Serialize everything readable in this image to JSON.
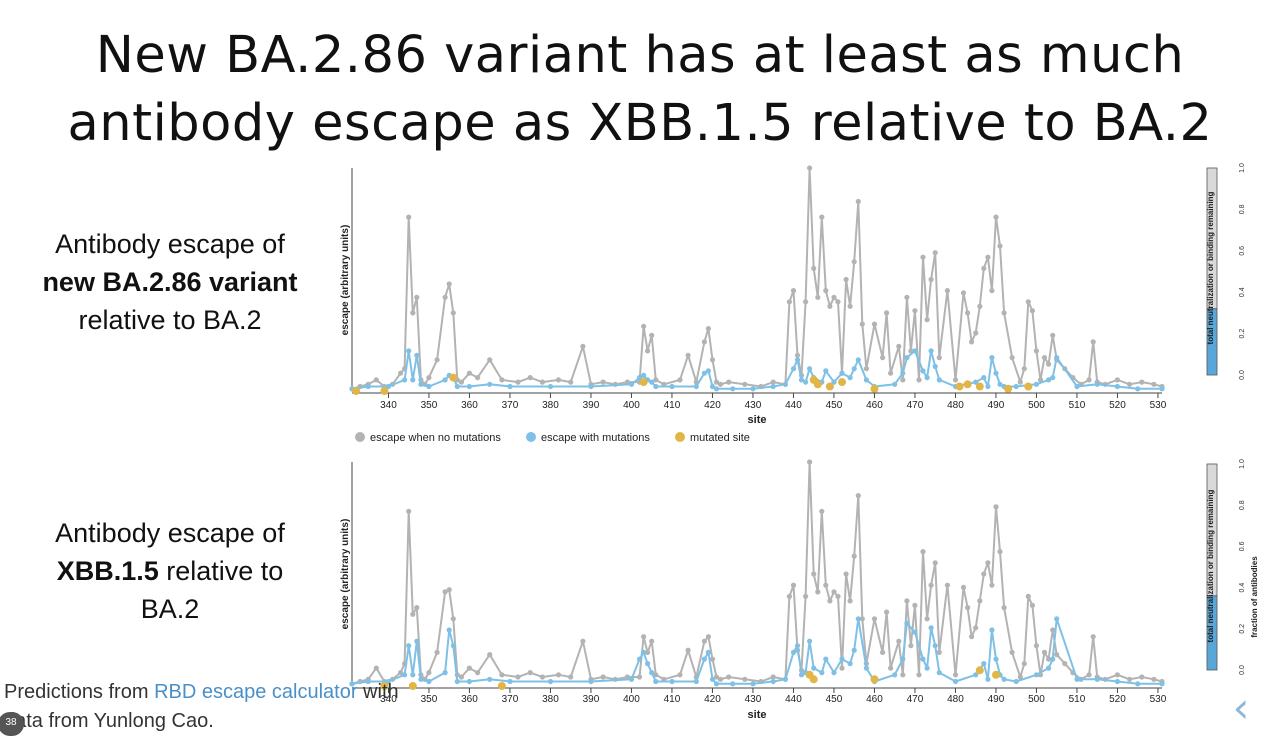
{
  "slide": {
    "title_line1": "New BA.2.86 variant has at least as much",
    "title_line2": "antibody escape as XBB.1.5 relative to BA.2",
    "panels": [
      {
        "line1": "Antibody escape of",
        "bold": "new BA.2.86 variant",
        "line3": "relative to BA.2"
      },
      {
        "line1": "Antibody escape of",
        "bold": "XBB.1.5",
        "line2_rest": " relative to",
        "line3": "BA.2"
      }
    ],
    "footer": {
      "prefix": "Predictions from ",
      "link": "RBD escape calculator",
      "suffix": " with data from Yunlong Cao."
    },
    "page_badge": "38",
    "nav_prev_glyph": "‹"
  },
  "chart_data": [
    {
      "type": "line",
      "xlabel": "site",
      "ylabel": "escape (arbitrary units)",
      "xlim": [
        331,
        531
      ],
      "ylim": [
        0,
        1.0
      ],
      "x_ticks": [
        340,
        350,
        360,
        370,
        380,
        390,
        400,
        410,
        420,
        430,
        440,
        450,
        460,
        470,
        480,
        490,
        500,
        510,
        520,
        530
      ],
      "legend": [
        "escape when no mutations",
        "escape with mutations",
        "mutated site"
      ],
      "colors": {
        "no_mut": "#b3b3b3",
        "with_mut": "#7ec0e6",
        "mutated": "#e2b547"
      },
      "series": [
        {
          "name": "escape when no mutations",
          "x": [
            331,
            333,
            335,
            337,
            339,
            341,
            343,
            344,
            345,
            346,
            347,
            348,
            349,
            350,
            352,
            354,
            355,
            356,
            357,
            358,
            360,
            362,
            365,
            368,
            372,
            375,
            378,
            382,
            385,
            388,
            390,
            393,
            396,
            399,
            402,
            403,
            404,
            405,
            406,
            408,
            412,
            414,
            416,
            418,
            419,
            420,
            421,
            422,
            424,
            428,
            432,
            435,
            438,
            439,
            440,
            441,
            442,
            443,
            444,
            445,
            446,
            447,
            448,
            449,
            450,
            451,
            452,
            453,
            454,
            455,
            456,
            457,
            458,
            460,
            462,
            463,
            464,
            466,
            467,
            468,
            469,
            470,
            471,
            472,
            473,
            474,
            475,
            476,
            478,
            480,
            482,
            483,
            484,
            485,
            486,
            487,
            488,
            489,
            490,
            491,
            492,
            494,
            496,
            497,
            498,
            499,
            500,
            501,
            502,
            503,
            504,
            505,
            507,
            509,
            511,
            513,
            514,
            515,
            517,
            520,
            523,
            526,
            529,
            531
          ],
          "y": [
            0.01,
            0.02,
            0.03,
            0.05,
            0.02,
            0.03,
            0.08,
            0.1,
            0.78,
            0.35,
            0.42,
            0.05,
            0.03,
            0.06,
            0.14,
            0.42,
            0.48,
            0.35,
            0.05,
            0.04,
            0.08,
            0.06,
            0.14,
            0.05,
            0.04,
            0.06,
            0.04,
            0.05,
            0.04,
            0.2,
            0.03,
            0.04,
            0.03,
            0.04,
            0.04,
            0.29,
            0.18,
            0.25,
            0.05,
            0.03,
            0.05,
            0.16,
            0.04,
            0.22,
            0.28,
            0.14,
            0.04,
            0.03,
            0.04,
            0.03,
            0.02,
            0.04,
            0.03,
            0.4,
            0.45,
            0.16,
            0.07,
            0.4,
            1.0,
            0.55,
            0.42,
            0.78,
            0.45,
            0.38,
            0.42,
            0.4,
            0.08,
            0.5,
            0.38,
            0.58,
            0.85,
            0.3,
            0.1,
            0.3,
            0.15,
            0.35,
            0.08,
            0.2,
            0.05,
            0.42,
            0.18,
            0.36,
            0.05,
            0.6,
            0.32,
            0.5,
            0.62,
            0.15,
            0.45,
            0.05,
            0.44,
            0.35,
            0.22,
            0.26,
            0.38,
            0.55,
            0.6,
            0.45,
            0.78,
            0.65,
            0.35,
            0.15,
            0.04,
            0.1,
            0.4,
            0.36,
            0.18,
            0.05,
            0.15,
            0.12,
            0.25,
            0.14,
            0.1,
            0.06,
            0.03,
            0.05,
            0.22,
            0.04,
            0.03,
            0.05,
            0.03,
            0.04,
            0.03,
            0.02
          ]
        },
        {
          "name": "escape with mutations",
          "x": [
            331,
            335,
            340,
            344,
            345,
            346,
            347,
            348,
            350,
            354,
            355,
            356,
            357,
            360,
            365,
            370,
            380,
            390,
            400,
            402,
            403,
            404,
            405,
            406,
            410,
            416,
            418,
            419,
            420,
            421,
            425,
            430,
            435,
            438,
            440,
            441,
            442,
            443,
            444,
            445,
            447,
            448,
            450,
            452,
            454,
            455,
            456,
            458,
            460,
            465,
            467,
            468,
            470,
            472,
            473,
            474,
            475,
            476,
            480,
            485,
            487,
            488,
            489,
            490,
            491,
            492,
            495,
            500,
            503,
            504,
            505,
            510,
            515,
            520,
            525,
            531
          ],
          "y": [
            0.01,
            0.02,
            0.02,
            0.05,
            0.18,
            0.05,
            0.16,
            0.03,
            0.02,
            0.05,
            0.07,
            0.06,
            0.02,
            0.02,
            0.03,
            0.02,
            0.02,
            0.02,
            0.03,
            0.06,
            0.07,
            0.05,
            0.04,
            0.02,
            0.02,
            0.02,
            0.08,
            0.09,
            0.02,
            0.01,
            0.01,
            0.01,
            0.02,
            0.03,
            0.1,
            0.14,
            0.05,
            0.04,
            0.1,
            0.06,
            0.04,
            0.09,
            0.04,
            0.08,
            0.06,
            0.1,
            0.14,
            0.05,
            0.02,
            0.03,
            0.08,
            0.15,
            0.18,
            0.09,
            0.06,
            0.18,
            0.11,
            0.05,
            0.02,
            0.04,
            0.06,
            0.02,
            0.15,
            0.08,
            0.03,
            0.02,
            0.02,
            0.03,
            0.05,
            0.06,
            0.15,
            0.02,
            0.03,
            0.02,
            0.01,
            0.01
          ]
        },
        {
          "name": "mutated site",
          "x": [
            332,
            339,
            356,
            403,
            445,
            446,
            449,
            452,
            460,
            481,
            483,
            486,
            493,
            498
          ],
          "y": [
            0.0,
            0.0,
            0.06,
            0.04,
            0.05,
            0.03,
            0.02,
            0.04,
            0.01,
            0.02,
            0.03,
            0.02,
            0.01,
            0.02
          ]
        }
      ],
      "colorbar": {
        "label": "total neutralization or binding remaining",
        "ticks": [
          0.0,
          0.2,
          0.4,
          0.6,
          0.8,
          1.0
        ],
        "value": 0.32,
        "fill": "#59a6d9",
        "remaining": "#d9d9d9"
      }
    },
    {
      "type": "line",
      "xlabel": "site",
      "ylabel": "escape (arbitrary units)",
      "xlim": [
        331,
        531
      ],
      "ylim": [
        0,
        1.0
      ],
      "x_ticks": [
        340,
        350,
        360,
        370,
        380,
        390,
        400,
        410,
        420,
        430,
        440,
        450,
        460,
        470,
        480,
        490,
        500,
        510,
        520,
        530
      ],
      "colors": {
        "no_mut": "#b3b3b3",
        "with_mut": "#7ec0e6",
        "mutated": "#e2b547"
      },
      "series": [
        {
          "name": "escape when no mutations",
          "x": [
            331,
            333,
            335,
            337,
            339,
            341,
            343,
            344,
            345,
            346,
            347,
            348,
            349,
            350,
            352,
            354,
            355,
            356,
            357,
            358,
            360,
            362,
            365,
            368,
            372,
            375,
            378,
            382,
            385,
            388,
            390,
            393,
            396,
            399,
            402,
            403,
            404,
            405,
            406,
            408,
            412,
            414,
            416,
            418,
            419,
            420,
            421,
            422,
            424,
            428,
            432,
            435,
            438,
            439,
            440,
            441,
            442,
            443,
            444,
            445,
            446,
            447,
            448,
            449,
            450,
            451,
            452,
            453,
            454,
            455,
            456,
            457,
            458,
            460,
            462,
            463,
            464,
            466,
            467,
            468,
            469,
            470,
            471,
            472,
            473,
            474,
            475,
            476,
            478,
            480,
            482,
            483,
            484,
            485,
            486,
            487,
            488,
            489,
            490,
            491,
            492,
            494,
            496,
            497,
            498,
            499,
            500,
            501,
            502,
            503,
            504,
            505,
            507,
            509,
            511,
            513,
            514,
            515,
            517,
            520,
            523,
            526,
            529,
            531
          ],
          "y": [
            0.01,
            0.02,
            0.03,
            0.08,
            0.02,
            0.03,
            0.06,
            0.1,
            0.78,
            0.32,
            0.35,
            0.05,
            0.03,
            0.06,
            0.15,
            0.42,
            0.43,
            0.3,
            0.05,
            0.04,
            0.08,
            0.06,
            0.14,
            0.05,
            0.04,
            0.06,
            0.04,
            0.05,
            0.04,
            0.2,
            0.03,
            0.04,
            0.03,
            0.04,
            0.04,
            0.22,
            0.15,
            0.2,
            0.05,
            0.03,
            0.05,
            0.16,
            0.04,
            0.2,
            0.22,
            0.12,
            0.04,
            0.03,
            0.04,
            0.03,
            0.02,
            0.04,
            0.03,
            0.4,
            0.45,
            0.16,
            0.07,
            0.4,
            1.0,
            0.5,
            0.42,
            0.78,
            0.45,
            0.38,
            0.42,
            0.4,
            0.08,
            0.5,
            0.38,
            0.58,
            0.85,
            0.3,
            0.1,
            0.3,
            0.15,
            0.33,
            0.08,
            0.2,
            0.05,
            0.38,
            0.18,
            0.36,
            0.05,
            0.6,
            0.3,
            0.45,
            0.55,
            0.15,
            0.45,
            0.05,
            0.44,
            0.35,
            0.22,
            0.26,
            0.38,
            0.5,
            0.55,
            0.45,
            0.8,
            0.6,
            0.35,
            0.15,
            0.04,
            0.1,
            0.4,
            0.36,
            0.18,
            0.05,
            0.15,
            0.12,
            0.25,
            0.14,
            0.1,
            0.06,
            0.03,
            0.05,
            0.22,
            0.04,
            0.03,
            0.05,
            0.03,
            0.04,
            0.03,
            0.02
          ]
        },
        {
          "name": "escape with mutations",
          "x": [
            331,
            335,
            340,
            344,
            345,
            346,
            347,
            348,
            350,
            354,
            355,
            356,
            357,
            360,
            365,
            370,
            380,
            390,
            400,
            402,
            403,
            404,
            405,
            406,
            410,
            416,
            418,
            419,
            420,
            421,
            425,
            430,
            435,
            438,
            440,
            441,
            442,
            443,
            444,
            445,
            447,
            448,
            450,
            452,
            454,
            455,
            456,
            458,
            460,
            465,
            467,
            468,
            470,
            472,
            473,
            474,
            475,
            476,
            480,
            485,
            487,
            488,
            489,
            490,
            491,
            492,
            495,
            500,
            503,
            504,
            505,
            510,
            515,
            520,
            525,
            531
          ],
          "y": [
            0.01,
            0.02,
            0.02,
            0.05,
            0.18,
            0.05,
            0.2,
            0.03,
            0.02,
            0.06,
            0.25,
            0.18,
            0.02,
            0.02,
            0.03,
            0.02,
            0.02,
            0.02,
            0.03,
            0.12,
            0.15,
            0.1,
            0.06,
            0.02,
            0.02,
            0.02,
            0.12,
            0.15,
            0.03,
            0.01,
            0.01,
            0.01,
            0.02,
            0.03,
            0.15,
            0.18,
            0.05,
            0.06,
            0.2,
            0.08,
            0.06,
            0.12,
            0.06,
            0.12,
            0.1,
            0.16,
            0.3,
            0.08,
            0.02,
            0.05,
            0.12,
            0.28,
            0.24,
            0.12,
            0.08,
            0.26,
            0.18,
            0.06,
            0.02,
            0.05,
            0.1,
            0.03,
            0.25,
            0.12,
            0.05,
            0.03,
            0.02,
            0.05,
            0.08,
            0.12,
            0.3,
            0.03,
            0.03,
            0.02,
            0.01,
            0.01
          ]
        },
        {
          "name": "mutated site",
          "x": [
            339,
            346,
            368,
            444,
            445,
            460,
            486,
            490
          ],
          "y": [
            0.0,
            0.0,
            0.0,
            0.05,
            0.03,
            0.03,
            0.07,
            0.05
          ]
        }
      ],
      "colorbar": {
        "label": "total neutralization or binding remaining",
        "label2": "fraction of antibodies",
        "ticks": [
          0.0,
          0.2,
          0.4,
          0.6,
          0.8,
          1.0
        ],
        "value": 0.36,
        "fill": "#59a6d9",
        "remaining": "#d9d9d9"
      }
    }
  ]
}
